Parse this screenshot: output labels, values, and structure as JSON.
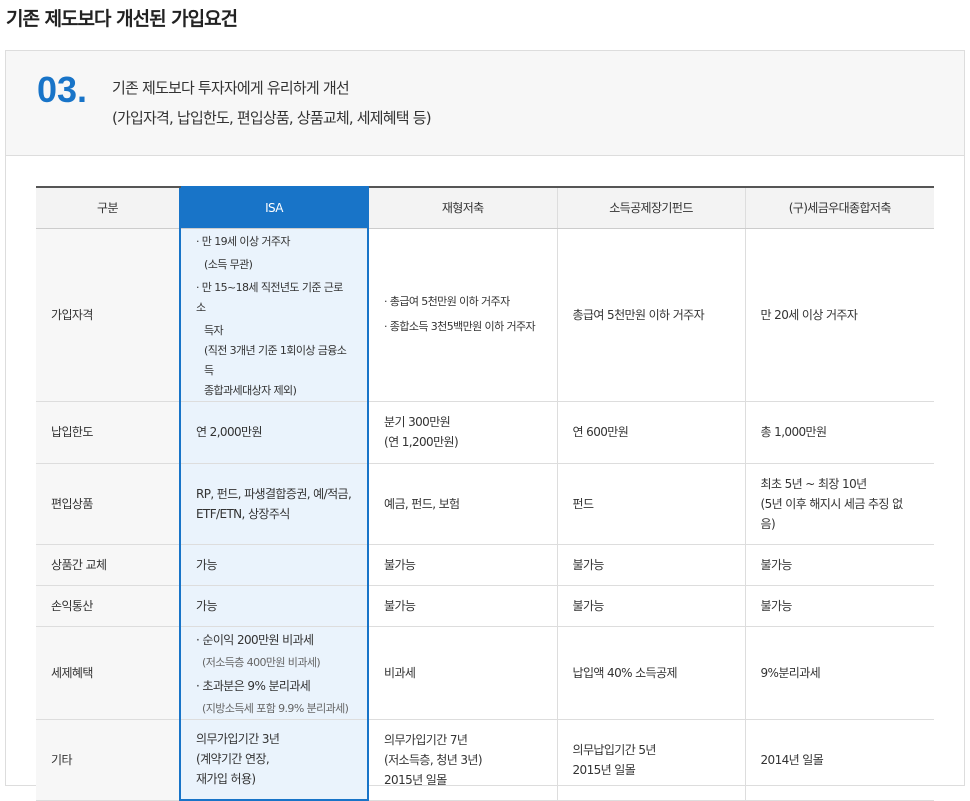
{
  "page_title": "기존 제도보다 개선된 가입요건",
  "section": {
    "number": "03.",
    "line1": "기존 제도보다 투자자에게 유리하게 개선",
    "line2": "(가입자격, 납입한도, 편입상품, 상품교체, 세제혜택 등)"
  },
  "accent": "#1874c8",
  "table": {
    "headers": [
      "구분",
      "ISA",
      "재형저축",
      "소득공제장기펀드",
      "(구)세금우대종합저축"
    ],
    "rows": [
      {
        "label": "가입자격",
        "isa": [
          "· 만 19세 이상 거주자",
          "(소득 무관)",
          "· 만 15~18세 직전년도 기준 근로소",
          "득자",
          "(직전 3개년 기준 1회이상 금융소득",
          "종합과세대상자 제외)"
        ],
        "c2": [
          "· 총급여 5천만원 이하 거주자",
          "· 종합소득 3천5백만원 이하 거주자"
        ],
        "c3": "총급여 5천만원 이하 거주자",
        "c4": "만 20세 이상 거주자"
      },
      {
        "label": "납입한도",
        "isa": "연 2,000만원",
        "c2": [
          "분기 300만원",
          "(연 1,200만원)"
        ],
        "c3": "연 600만원",
        "c4": "총 1,000만원"
      },
      {
        "label": "편입상품",
        "isa": [
          "RP, 펀드, 파생결합증권, 예/적금,",
          "ETF/ETN, 상장주식"
        ],
        "c2": "예금, 펀드, 보험",
        "c3": "펀드",
        "c4": [
          "최초 5년 ~ 최장 10년",
          "(5년 이후 해지시 세금 추징 없",
          "음)"
        ]
      },
      {
        "label": "상품간 교체",
        "isa": "가능",
        "c2": "불가능",
        "c3": "불가능",
        "c4": "불가능"
      },
      {
        "label": "손익통산",
        "isa": "가능",
        "c2": "불가능",
        "c3": "불가능",
        "c4": "불가능"
      },
      {
        "label": "세제혜택",
        "isa": [
          "· 순이익 200만원 비과세",
          "(저소득층 400만원 비과세)",
          "· 초과분은 9% 분리과세",
          "(지방소득세 포함 9.9% 분리과세)"
        ],
        "c2": "비과세",
        "c3": "납입액 40% 소득공제",
        "c4": "9%분리과세"
      },
      {
        "label": "기타",
        "isa": [
          "의무가입기간 3년",
          "(계약기간 연장,",
          "재가입 허용)"
        ],
        "c2": [
          "의무가입기간 7년",
          "(저소득층, 청년 3년)",
          "2015년 일몰"
        ],
        "c3": [
          "의무납입기간 5년",
          "2015년 일몰"
        ],
        "c4": "2014년 일몰"
      }
    ]
  }
}
